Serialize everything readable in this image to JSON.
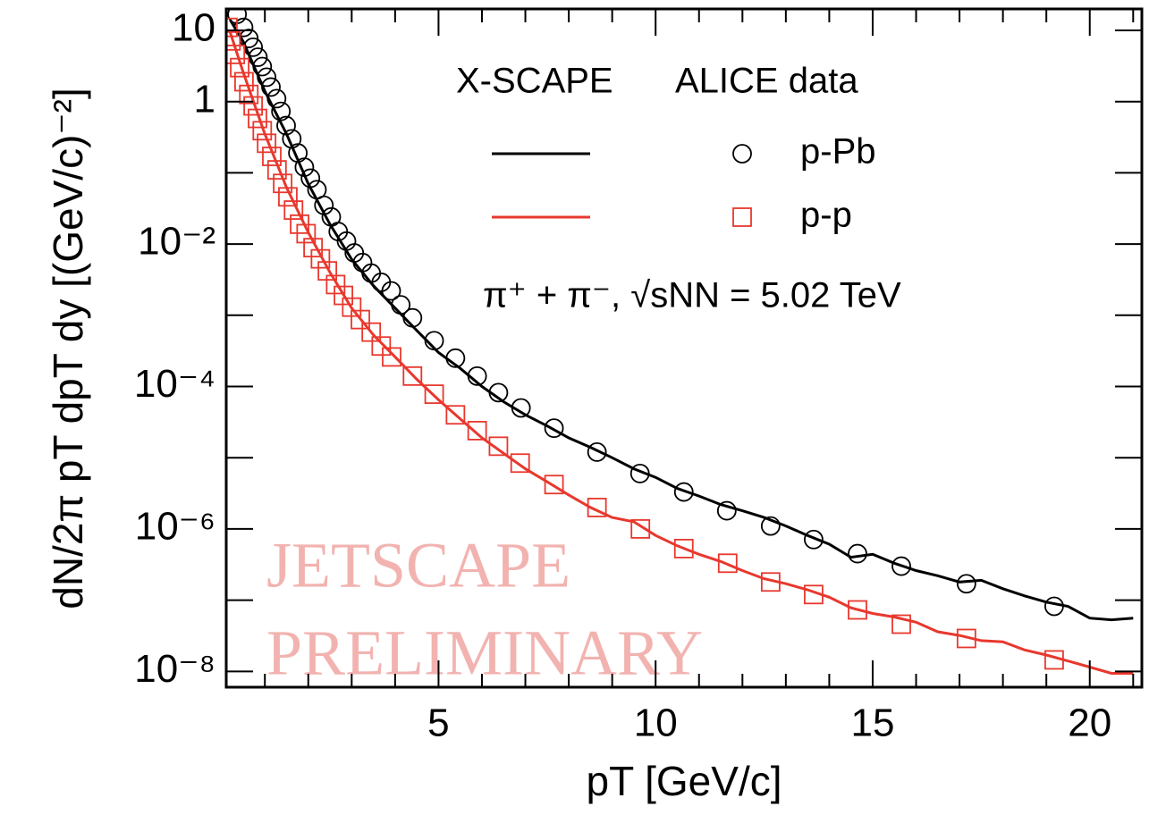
{
  "chart_data": {
    "type": "line",
    "x_label": "pT [GeV/c]",
    "y_label": "dN/2π pT dpT dy [(GeV/c)⁻²]",
    "model_label": "X-SCAPE",
    "data_label": "ALICE data",
    "annotation": "π⁺ + π⁻, √sNN = 5.02 TeV",
    "watermark": [
      "JETSCAPE",
      "PRELIMINARY"
    ],
    "log_y": true,
    "xlim": [
      0.11,
      21.2
    ],
    "ylim": [
      6e-09,
      20
    ],
    "xticks": [
      5,
      10,
      15,
      20
    ],
    "x_minor_ticks": [
      1,
      2,
      3,
      4,
      6,
      7,
      8,
      9,
      11,
      12,
      13,
      14,
      16,
      17,
      18,
      19,
      21
    ],
    "yticks": [
      10,
      1,
      {
        "value": 0.01,
        "label": "10⁻²"
      },
      {
        "value": 0.0001,
        "label": "10⁻⁴"
      },
      {
        "value": 1e-06,
        "label": "10⁻⁶"
      },
      {
        "value": 1e-08,
        "label": "10⁻⁸"
      }
    ],
    "y_minor_ticks": [
      0.1,
      0.001,
      1e-05,
      1e-07
    ],
    "model_x": [
      0.2,
      0.5,
      1,
      1.5,
      2,
      2.5,
      3,
      3.5,
      4,
      4.5,
      5,
      5.5,
      6,
      6.5,
      7,
      7.5,
      8,
      8.5,
      9,
      9.5,
      10,
      10.5,
      11,
      11.5,
      12,
      12.5,
      13,
      13.5,
      14,
      14.5,
      15,
      15.5,
      16,
      16.5,
      17,
      17.5,
      18,
      18.5,
      19,
      19.5,
      20,
      20.5,
      21
    ],
    "series": [
      {
        "name": "p-Pb",
        "color": "#000000",
        "marker": "circle",
        "model_values": [
          14,
          7,
          1.4,
          0.35,
          0.07,
          0.019,
          0.0061,
          0.0026,
          0.00126,
          0.00061,
          0.0003,
          0.00018,
          0.0001,
          6.1e-05,
          4e-05,
          2.8e-05,
          1.9e-05,
          1.4e-05,
          1e-05,
          7e-06,
          5.3e-06,
          3.7e-06,
          2.9e-06,
          2.2e-06,
          1.8e-06,
          1.45e-06,
          1.1e-06,
          8.1e-07,
          6.1e-07,
          4e-07,
          4.4e-07,
          3.3e-07,
          2.6e-07,
          2.2e-07,
          1.8e-07,
          1.9e-07,
          1.45e-07,
          1.15e-07,
          9.4e-08,
          8.2e-08,
          5.6e-08,
          5.3e-08,
          5.6e-08
        ],
        "data_x": [
          0.36,
          0.51,
          0.63,
          0.73,
          0.84,
          0.94,
          1.04,
          1.14,
          1.27,
          1.37,
          1.49,
          1.62,
          1.76,
          1.91,
          2.05,
          2.2,
          2.36,
          2.53,
          2.69,
          2.88,
          3.06,
          3.25,
          3.45,
          3.68,
          3.91,
          4.13,
          4.4,
          4.9,
          5.39,
          5.89,
          6.38,
          6.9,
          7.66,
          8.65,
          9.64,
          10.65,
          11.64,
          12.65,
          13.64,
          14.65,
          15.66,
          17.16,
          19.18
        ],
        "data_values": [
          16.8,
          11,
          7.7,
          5.8,
          4.2,
          3.1,
          2.2,
          1.6,
          1.1,
          0.73,
          0.46,
          0.3,
          0.19,
          0.12,
          0.084,
          0.058,
          0.035,
          0.024,
          0.015,
          0.011,
          0.0075,
          0.0055,
          0.0039,
          0.0029,
          0.0022,
          0.0014,
          0.00092,
          0.00044,
          0.00025,
          0.00014,
          8.2e-05,
          5e-05,
          2.6e-05,
          1.2e-05,
          6e-06,
          3.3e-06,
          1.8e-06,
          1.1e-06,
          7.1e-07,
          4.5e-07,
          3e-07,
          1.7e-07,
          8.2e-08
        ]
      },
      {
        "name": "p-p",
        "color": "#e8382e",
        "marker": "square",
        "model_values": [
          9.4,
          2.6,
          0.35,
          0.062,
          0.0145,
          0.004,
          0.00126,
          0.00053,
          0.00026,
          0.000126,
          6.5e-05,
          3.5e-05,
          1.9e-05,
          1.15e-05,
          7e-06,
          4.6e-06,
          3e-06,
          2e-06,
          1.45e-06,
          1.26e-06,
          8.1e-07,
          5.8e-07,
          4.4e-07,
          3.5e-07,
          2.6e-07,
          2e-07,
          1.7e-07,
          1.4e-07,
          1.1e-07,
          7.8e-08,
          6.5e-08,
          5.8e-08,
          4.9e-08,
          3.6e-08,
          3.2e-08,
          2.7e-08,
          2.6e-08,
          2e-08,
          1.7e-08,
          1.4e-08,
          1.15e-08,
          9.4e-09,
          9.4e-09
        ],
        "data_x": [
          0.15,
          0.22,
          0.32,
          0.42,
          0.52,
          0.63,
          0.73,
          0.83,
          0.94,
          1.04,
          1.16,
          1.28,
          1.41,
          1.53,
          1.66,
          1.8,
          1.95,
          2.11,
          2.28,
          2.44,
          2.63,
          2.81,
          3,
          3.2,
          3.45,
          3.68,
          3.92,
          4.4,
          4.9,
          5.39,
          5.89,
          6.38,
          6.88,
          7.66,
          8.65,
          9.65,
          10.65,
          11.66,
          12.65,
          13.64,
          14.65,
          15.66,
          17.16,
          19.18
        ],
        "data_values": [
          11,
          7.1,
          4.6,
          3,
          1.9,
          1.26,
          0.87,
          0.58,
          0.39,
          0.26,
          0.17,
          0.11,
          0.071,
          0.046,
          0.03,
          0.019,
          0.014,
          0.0089,
          0.0062,
          0.0042,
          0.0027,
          0.0019,
          0.0013,
          0.00087,
          0.00058,
          0.00037,
          0.00026,
          0.00014,
          7.8e-05,
          4e-05,
          2.4e-05,
          1.45e-05,
          8.4e-06,
          4.2e-06,
          2e-06,
          1e-06,
          5.3e-07,
          3.3e-07,
          1.8e-07,
          1.2e-07,
          7.3e-08,
          4.6e-08,
          2.9e-08,
          1.45e-08
        ]
      }
    ]
  }
}
